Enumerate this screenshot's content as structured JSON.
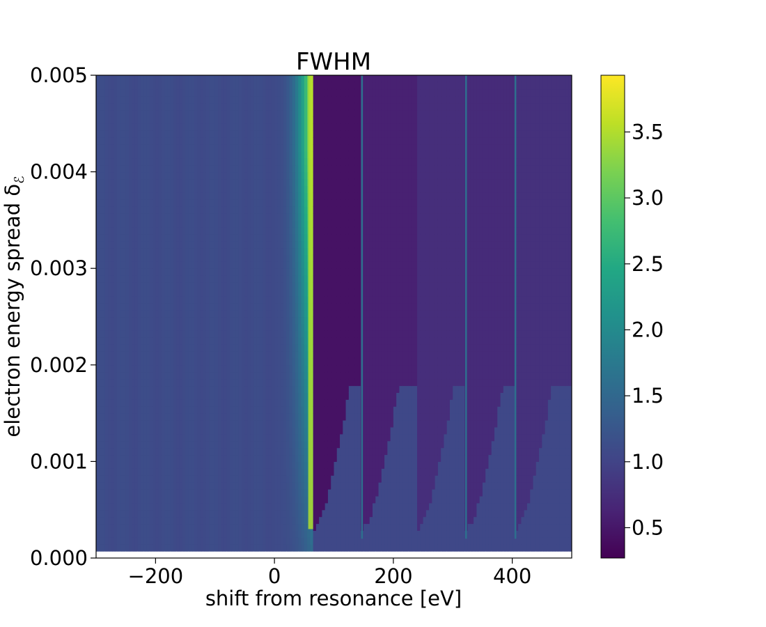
{
  "chart_data": {
    "type": "heatmap",
    "title": "FWHM",
    "xlabel": "shift from resonance [eV]",
    "ylabel": "electron energy spread δ",
    "ylabel_sub": "ℰ",
    "xlim": [
      -300,
      500
    ],
    "ylim": [
      0.0,
      0.005
    ],
    "x_ticks": [
      -200,
      0,
      200,
      400
    ],
    "x_tick_labels": [
      "−200",
      "0",
      "200",
      "400"
    ],
    "y_ticks": [
      0.0,
      0.001,
      0.002,
      0.003,
      0.004,
      0.005
    ],
    "y_tick_labels": [
      "0.000",
      "0.001",
      "0.002",
      "0.003",
      "0.004",
      "0.005"
    ],
    "colorbar": {
      "range": [
        0.27,
        3.93
      ],
      "ticks": [
        0.5,
        1.0,
        1.5,
        2.0,
        2.5,
        3.0,
        3.5
      ],
      "tick_labels": [
        "0.5",
        "1.0",
        "1.5",
        "2.0",
        "2.5",
        "3.0",
        "3.5"
      ],
      "colormap": "viridis"
    },
    "features": {
      "left_baseline": 1.1,
      "rise_start": 0,
      "peak_x": 65,
      "peak_value": 3.9,
      "post_peak_trough": 0.45,
      "dark_band_edges": [
        65,
        147,
        240,
        322,
        405,
        500
      ],
      "dark_band_values": [
        0.45,
        0.6,
        0.75,
        0.72,
        0.78
      ],
      "ridge_edges": [
        147,
        322,
        405
      ],
      "lowest_delta": 5e-05
    },
    "grid": false
  }
}
